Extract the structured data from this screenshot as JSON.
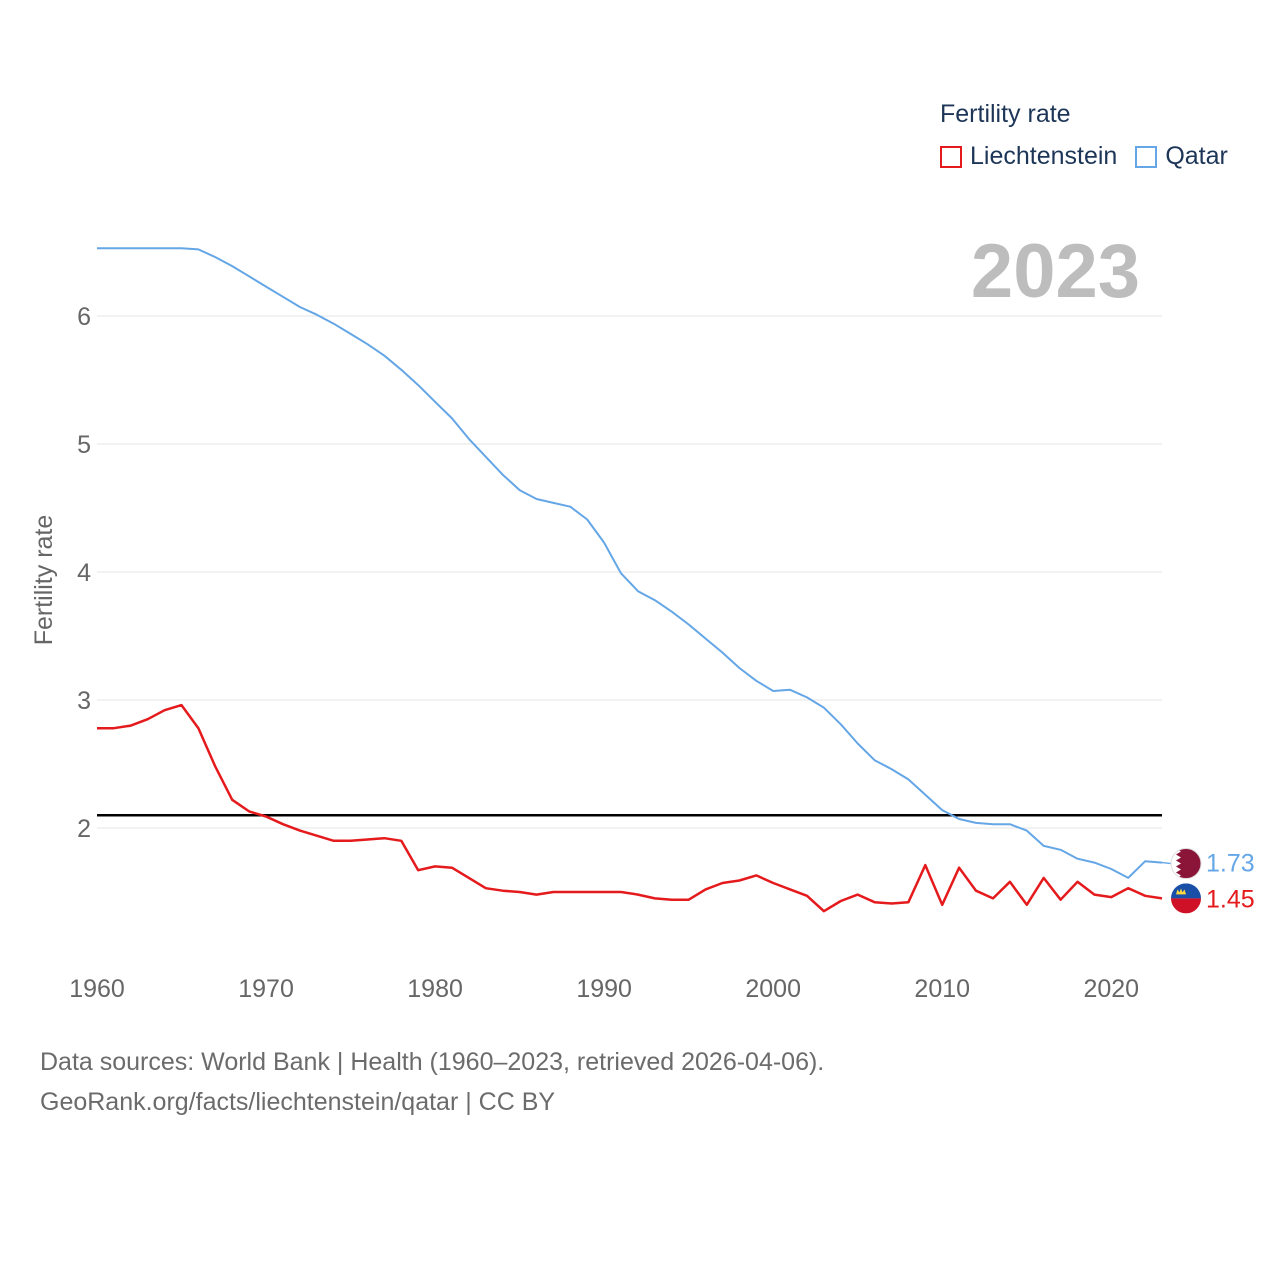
{
  "chart_data": {
    "type": "line",
    "ylabel": "Fertility rate",
    "xlabel": "",
    "xlim": [
      1960,
      2023
    ],
    "ylim": [
      1.0,
      7.0
    ],
    "x_ticks": [
      "1960",
      "1970",
      "1980",
      "1990",
      "2000",
      "2010",
      "2020"
    ],
    "y_ticks": [
      "2",
      "3",
      "4",
      "5",
      "6"
    ],
    "current_year": "2023",
    "reference_line": 2.1,
    "legend": {
      "title": "Fertility rate",
      "position": "top-right"
    },
    "x": [
      1960,
      1961,
      1962,
      1963,
      1964,
      1965,
      1966,
      1967,
      1968,
      1969,
      1970,
      1971,
      1972,
      1973,
      1974,
      1975,
      1976,
      1977,
      1978,
      1979,
      1980,
      1981,
      1982,
      1983,
      1984,
      1985,
      1986,
      1987,
      1988,
      1989,
      1990,
      1991,
      1992,
      1993,
      1994,
      1995,
      1996,
      1997,
      1998,
      1999,
      2000,
      2001,
      2002,
      2003,
      2004,
      2005,
      2006,
      2007,
      2008,
      2009,
      2010,
      2011,
      2012,
      2013,
      2014,
      2015,
      2016,
      2017,
      2018,
      2019,
      2020,
      2021,
      2022,
      2023
    ],
    "series": [
      {
        "name": "Liechtenstein",
        "color": "#e41a1c",
        "end_label": "1.45",
        "values": [
          2.78,
          2.78,
          2.8,
          2.85,
          2.92,
          2.96,
          2.78,
          2.48,
          2.22,
          2.13,
          2.09,
          2.03,
          1.98,
          1.94,
          1.9,
          1.9,
          1.91,
          1.92,
          1.9,
          1.67,
          1.7,
          1.69,
          1.61,
          1.53,
          1.51,
          1.5,
          1.48,
          1.5,
          1.5,
          1.5,
          1.5,
          1.5,
          1.48,
          1.45,
          1.44,
          1.44,
          1.52,
          1.57,
          1.59,
          1.63,
          1.57,
          1.52,
          1.47,
          1.35,
          1.43,
          1.48,
          1.42,
          1.41,
          1.42,
          1.71,
          1.4,
          1.69,
          1.51,
          1.45,
          1.58,
          1.4,
          1.61,
          1.44,
          1.58,
          1.48,
          1.46,
          1.53,
          1.47,
          1.45
        ]
      },
      {
        "name": "Qatar",
        "color": "#64a6e6",
        "end_label": "1.73",
        "values": [
          6.53,
          6.53,
          6.53,
          6.53,
          6.53,
          6.53,
          6.52,
          6.46,
          6.39,
          6.31,
          6.23,
          6.15,
          6.07,
          6.01,
          5.94,
          5.86,
          5.78,
          5.69,
          5.58,
          5.46,
          5.33,
          5.2,
          5.04,
          4.9,
          4.76,
          4.64,
          4.57,
          4.54,
          4.51,
          4.41,
          4.23,
          3.99,
          3.85,
          3.78,
          3.69,
          3.59,
          3.48,
          3.37,
          3.25,
          3.15,
          3.07,
          3.08,
          3.02,
          2.94,
          2.81,
          2.66,
          2.53,
          2.46,
          2.38,
          2.26,
          2.14,
          2.07,
          2.04,
          2.03,
          2.03,
          1.98,
          1.86,
          1.83,
          1.76,
          1.73,
          1.68,
          1.61,
          1.74,
          1.73
        ]
      }
    ]
  },
  "footer": {
    "line1": "Data sources: World Bank | Health (1960–2023, retrieved 2026-04-06).",
    "line2": "GeoRank.org/facts/liechtenstein/qatar | CC BY"
  }
}
